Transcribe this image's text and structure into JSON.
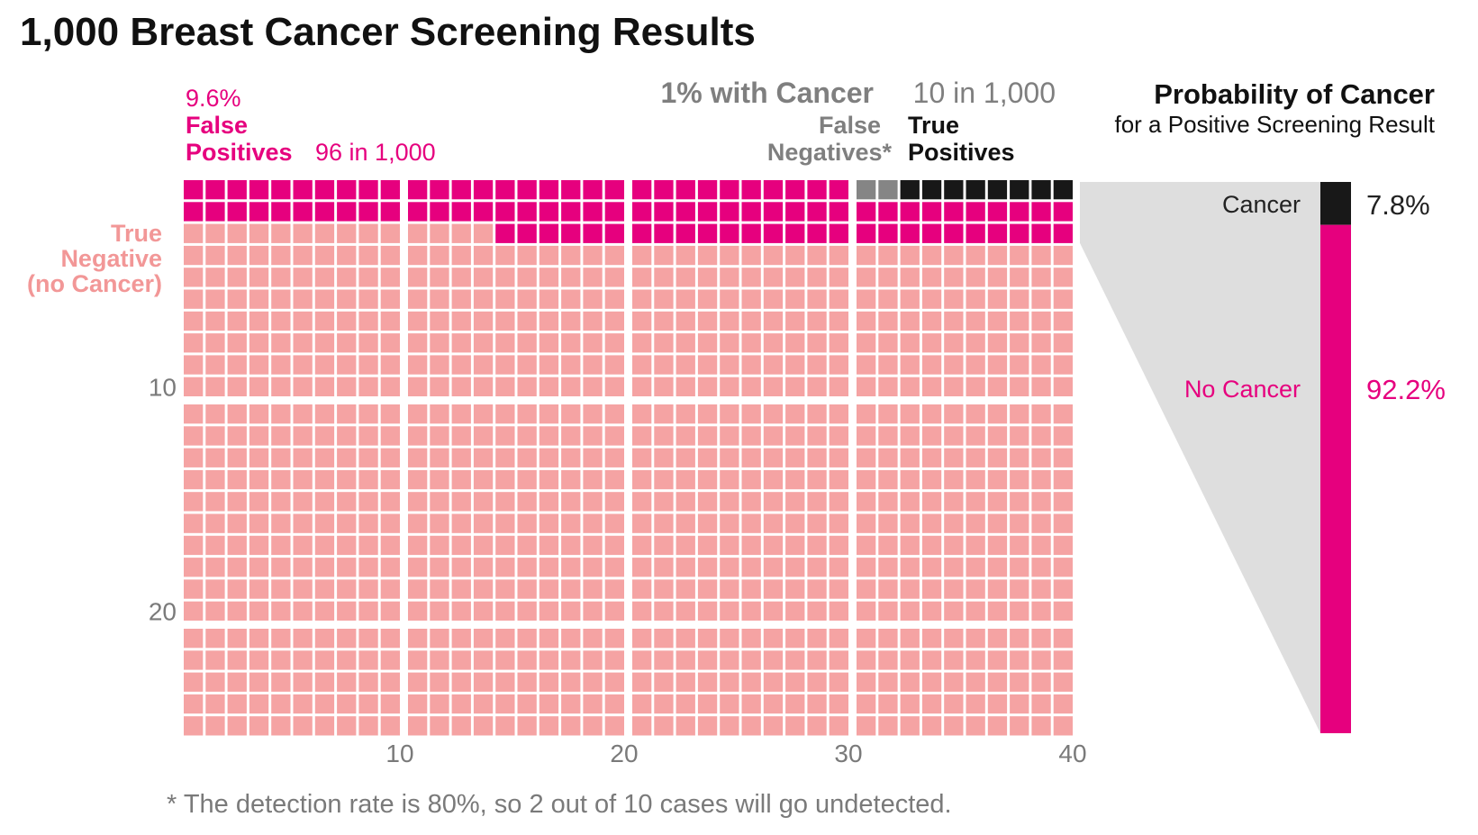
{
  "title": "1,000 Breast Cancer Screening Results",
  "colors": {
    "false_positive": "#e6007e",
    "true_negative": "#f5a3a3",
    "true_negative_label": "#f29797",
    "false_negative": "#858585",
    "true_positive": "#181818",
    "funnel": "#dedede"
  },
  "labels": {
    "fp_pct": "9.6%",
    "fp_line1": "False",
    "fp_line2": "Positives",
    "fp_count": "96 in 1,000",
    "cancer_head": "1% with Cancer",
    "cancer_count": "10 in 1,000",
    "fn_line1": "False",
    "fn_line2": "Negatives*",
    "tp_line1": "True",
    "tp_line2": "Positives",
    "tn_line1": "True",
    "tn_line2": "Negative",
    "tn_line3": "(no Cancer)",
    "prob_title": "Probability of Cancer",
    "prob_sub": "for a Positive Screening Result",
    "footnote": "* The detection rate is 80%, so 2 out of 10 cases will go undetected."
  },
  "chart_data": [
    {
      "type": "waffle",
      "title": "1,000 Breast Cancer Screening Results",
      "columns": 40,
      "rows": 25,
      "x_ticks": [
        10,
        20,
        30,
        40
      ],
      "y_ticks": [
        10,
        20
      ],
      "series": [
        {
          "name": "False Positives",
          "count": 96
        },
        {
          "name": "False Negatives*",
          "count": 2
        },
        {
          "name": "True Positives",
          "count": 8
        },
        {
          "name": "True Negative (no Cancer)",
          "count": 894
        }
      ]
    },
    {
      "type": "bar",
      "title": "Probability of Cancer",
      "subtitle": "for a Positive Screening Result",
      "categories": [
        "Cancer",
        "No Cancer"
      ],
      "values": [
        7.8,
        92.2
      ],
      "value_labels": [
        "7.8%",
        "92.2%"
      ]
    }
  ]
}
